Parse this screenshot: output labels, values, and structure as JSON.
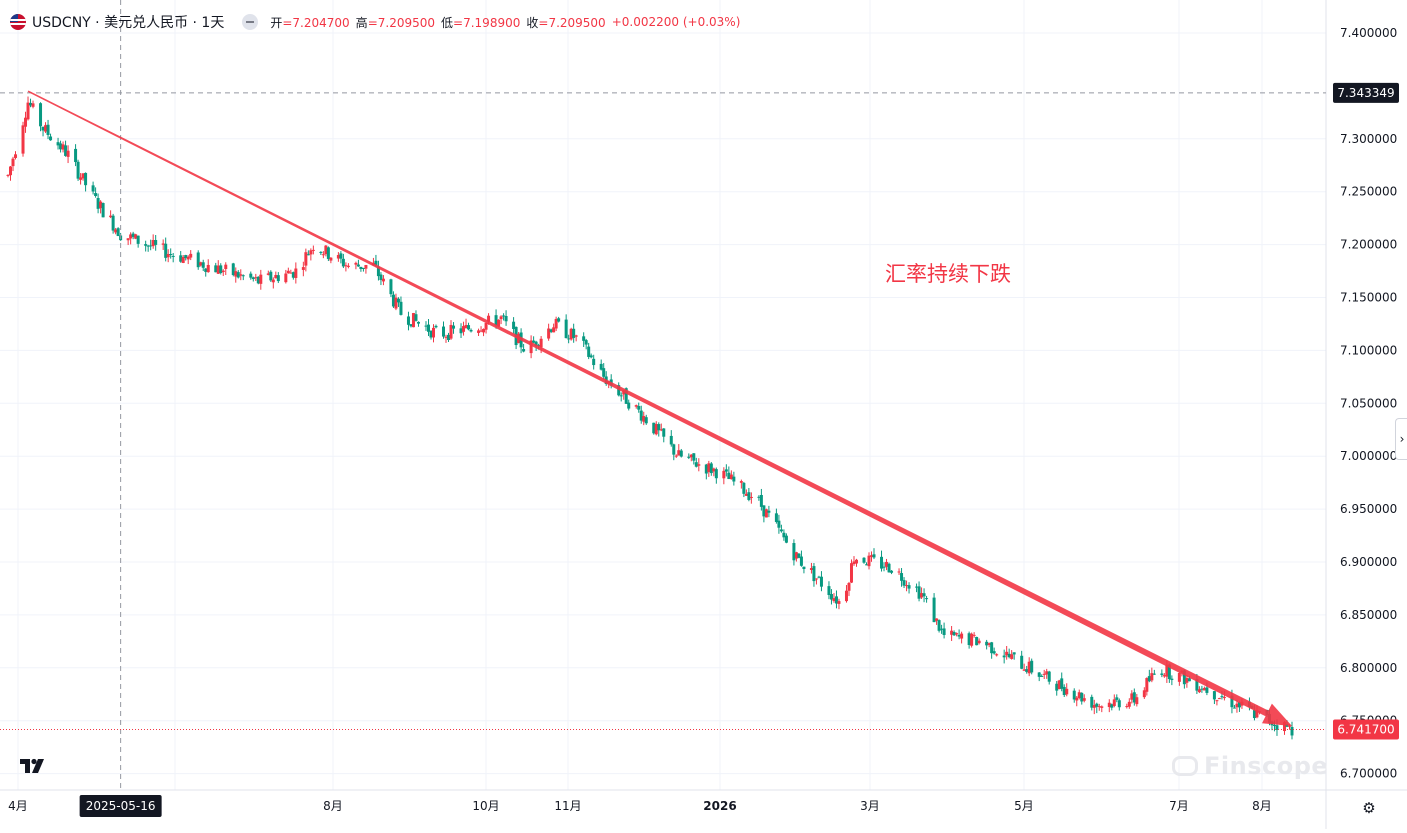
{
  "header": {
    "symbol": "USDCNY · 美元兑人民币 · 1天",
    "open_label": "开",
    "open": "7.204700",
    "high_label": "高",
    "high": "7.209500",
    "low_label": "低",
    "low": "7.198900",
    "close_label": "收",
    "close": "7.209500",
    "change": "+0.002200 (+0.03%)"
  },
  "annotation_text": "汇率持续下跌",
  "watermark": "Finscope",
  "crosshair": {
    "date_label": "2025-05-16",
    "price_label": "7.343349",
    "price": 7.343349
  },
  "last_price": {
    "label": "6.741700",
    "value": 6.7417
  },
  "colors": {
    "up": "#f23645",
    "down": "#089981",
    "trend": "#f23645",
    "grid": "#f0f3fa"
  },
  "icons": [
    "tradingview-logo-icon",
    "chevron-right-icon",
    "settings-gear-icon",
    "eye-icon"
  ],
  "chart_data": {
    "type": "candlestick",
    "x_axis_ticks": [
      "4月",
      "2025-05-16",
      "8月",
      "10月",
      "11月",
      "2026",
      "3月",
      "5月",
      "7月",
      "8月"
    ],
    "y_axis_ticks": [
      "7.400000",
      "7.300000",
      "7.250000",
      "7.200000",
      "7.150000",
      "7.100000",
      "7.050000",
      "7.000000",
      "6.950000",
      "6.900000",
      "6.850000",
      "6.800000",
      "6.750000",
      "6.700000"
    ],
    "ylim": [
      6.68,
      7.42
    ],
    "trend_line": {
      "from": [
        "2025-04-09",
        7.345
      ],
      "to": [
        "2026-08-27",
        6.745
      ]
    },
    "candles_close_path": [
      [
        "2025-04-01",
        7.265
      ],
      [
        "2025-04-09",
        7.335
      ],
      [
        "2025-04-15",
        7.31
      ],
      [
        "2025-04-25",
        7.285
      ],
      [
        "2025-05-05",
        7.245
      ],
      [
        "2025-05-16",
        7.21
      ],
      [
        "2025-06-01",
        7.195
      ],
      [
        "2025-06-20",
        7.18
      ],
      [
        "2025-07-10",
        7.165
      ],
      [
        "2025-07-25",
        7.175
      ],
      [
        "2025-08-01",
        7.2
      ],
      [
        "2025-08-15",
        7.18
      ],
      [
        "2025-08-25",
        7.18
      ],
      [
        "2025-09-05",
        7.135
      ],
      [
        "2025-09-20",
        7.115
      ],
      [
        "2025-10-01",
        7.12
      ],
      [
        "2025-10-15",
        7.13
      ],
      [
        "2025-10-25",
        7.1
      ],
      [
        "2025-11-05",
        7.125
      ],
      [
        "2025-11-15",
        7.11
      ],
      [
        "2025-11-25",
        7.075
      ],
      [
        "2025-12-10",
        7.04
      ],
      [
        "2025-12-25",
        7.0
      ],
      [
        "2026-01-10",
        6.985
      ],
      [
        "2026-01-25",
        6.96
      ],
      [
        "2026-02-10",
        6.905
      ],
      [
        "2026-02-28",
        6.86
      ],
      [
        "2026-03-05",
        6.905
      ],
      [
        "2026-03-20",
        6.895
      ],
      [
        "2026-04-01",
        6.87
      ],
      [
        "2026-04-10",
        6.83
      ],
      [
        "2026-04-25",
        6.825
      ],
      [
        "2026-05-10",
        6.805
      ],
      [
        "2026-05-25",
        6.785
      ],
      [
        "2026-06-10",
        6.765
      ],
      [
        "2026-06-25",
        6.77
      ],
      [
        "2026-07-05",
        6.8
      ],
      [
        "2026-07-20",
        6.785
      ],
      [
        "2026-08-05",
        6.765
      ],
      [
        "2026-08-20",
        6.748
      ],
      [
        "2026-08-27",
        6.742
      ]
    ]
  }
}
